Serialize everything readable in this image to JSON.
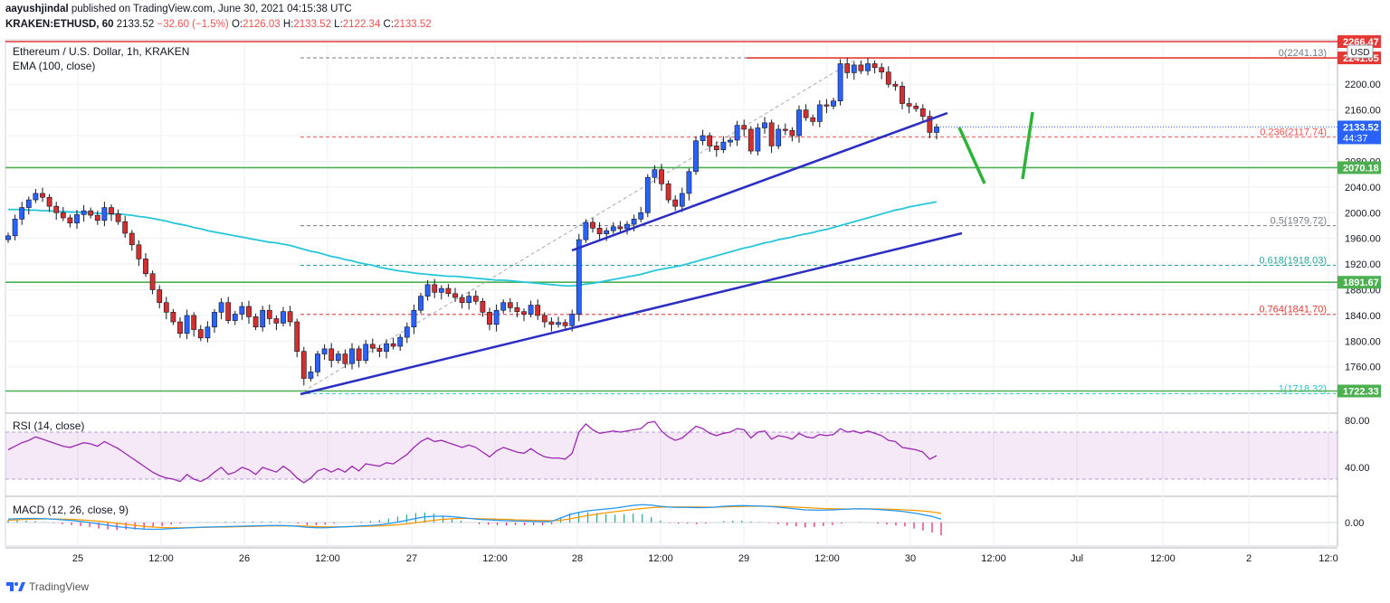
{
  "header": {
    "author": "aayushjindal",
    "published_text": "published on TradingView.com, June 30, 2021 04:15:38 UTC",
    "symbol": "KRAKEN:ETHUSD, 60",
    "last": "2133.52",
    "change": "−32.60 (−1.5%)",
    "o_label": "O:",
    "o_value": "2126.03",
    "h_label": "H:",
    "h_value": "2133.52",
    "l_label": "L:",
    "l_value": "2122.34",
    "c_label": "C:",
    "c_value": "2133.52"
  },
  "footer": {
    "brand": "TradingView"
  },
  "colors": {
    "up": "#2962ff",
    "down": "#d32f2f",
    "ema": "#26c6da",
    "trendline": "#2a2ec2",
    "support": "#4caf50",
    "resistance": "#e53935",
    "rsi": "#9c27b0",
    "macd": "#2196f3",
    "signal": "#ff9800",
    "hist": "#e91e63",
    "projection": "#2eb33a"
  },
  "chart_data": [
    {
      "type": "candlestick",
      "title": "Ethereum / U.S. Dollar, 1h, KRAKEN",
      "indicator_label": "EMA (100, close)",
      "currency": "USD",
      "ylim": [
        1700,
        2270
      ],
      "y_ticks": [
        1760,
        1800,
        1840,
        1880,
        1920,
        1960,
        2000,
        2040,
        2080,
        2120,
        2160,
        2200
      ],
      "x_tick_labels": [
        "25",
        "12:00",
        "26",
        "12:00",
        "27",
        "12:00",
        "28",
        "12:00",
        "29",
        "12:00",
        "30",
        "12:00",
        "Jul",
        "12:00",
        "2",
        "12:0"
      ],
      "price_labels": [
        {
          "value": 2266.47,
          "label": "2266.47",
          "color": "#e53935"
        },
        {
          "value": 2241.05,
          "label": "2241.05",
          "color": "#e53935"
        },
        {
          "value": 2133.52,
          "label": "2133.52",
          "sub": "44:37",
          "color": "#2962ff"
        },
        {
          "value": 2070.18,
          "label": "2070.18",
          "color": "#4caf50"
        },
        {
          "value": 1891.67,
          "label": "1891.67",
          "color": "#4caf50"
        },
        {
          "value": 1722.33,
          "label": "1722.33",
          "color": "#4caf50"
        }
      ],
      "horizontal_lines": [
        {
          "value": 2266.47,
          "style": "resistance"
        },
        {
          "value": 2241.05,
          "style": "resistance"
        },
        {
          "value": 2070.18,
          "style": "support"
        },
        {
          "value": 1891.67,
          "style": "support"
        },
        {
          "value": 1722.33,
          "style": "support"
        }
      ],
      "fibonacci": [
        {
          "level": "0",
          "value": 2241.13,
          "label": "0(2241.13)",
          "color": "#787b86"
        },
        {
          "level": "0.236",
          "value": 2117.74,
          "label": "0.236(2117.74)",
          "color": "#ef5350"
        },
        {
          "level": "0.5",
          "value": 1979.72,
          "label": "0.5(1979.72)",
          "color": "#787b86"
        },
        {
          "level": "0.618",
          "value": 1918.03,
          "label": "0.618(1918.03)",
          "color": "#26a69a"
        },
        {
          "level": "0.764",
          "value": 1841.7,
          "label": "0.764(1841.70)",
          "color": "#e53935"
        },
        {
          "level": "1",
          "value": 1718.32,
          "label": "1(1718.32)",
          "color": "#26c6da"
        }
      ],
      "closes": [
        1964,
        1990,
        2008,
        2020,
        2030,
        2024,
        2010,
        2000,
        1992,
        1984,
        1997,
        2003,
        1996,
        1988,
        2008,
        1998,
        1986,
        1968,
        1950,
        1928,
        1905,
        1880,
        1860,
        1845,
        1830,
        1812,
        1840,
        1818,
        1805,
        1822,
        1845,
        1860,
        1832,
        1842,
        1854,
        1838,
        1822,
        1848,
        1835,
        1828,
        1846,
        1830,
        1784,
        1742,
        1752,
        1780,
        1788,
        1770,
        1780,
        1765,
        1788,
        1770,
        1795,
        1789,
        1784,
        1796,
        1792,
        1806,
        1822,
        1848,
        1870,
        1888,
        1876,
        1882,
        1874,
        1868,
        1860,
        1870,
        1862,
        1845,
        1826,
        1848,
        1860,
        1852,
        1846,
        1842,
        1856,
        1840,
        1830,
        1826,
        1829,
        1824,
        1842,
        1958,
        1985,
        1976,
        1967,
        1972,
        1978,
        1975,
        1982,
        1990,
        2000,
        2055,
        2067,
        2045,
        2020,
        2010,
        2030,
        2064,
        2112,
        2120,
        2104,
        2098,
        2110,
        2113,
        2136,
        2130,
        2096,
        2132,
        2140,
        2104,
        2130,
        2128,
        2120,
        2160,
        2148,
        2142,
        2168,
        2166,
        2174,
        2232,
        2218,
        2230,
        2221,
        2232,
        2226,
        2219,
        2200,
        2197,
        2170,
        2166,
        2162,
        2150,
        2125,
        2133.52
      ],
      "ema": [
        2005,
        2005,
        2005,
        2004,
        2004,
        2003,
        2003,
        2002,
        2002,
        2001,
        2001,
        2000,
        2000,
        1999,
        1999,
        1998,
        1998,
        1997,
        1996,
        1994,
        1993,
        1991,
        1989,
        1987,
        1984,
        1982,
        1980,
        1977,
        1975,
        1972,
        1970,
        1968,
        1966,
        1964,
        1962,
        1960,
        1958,
        1956,
        1954,
        1953,
        1951,
        1949,
        1946,
        1943,
        1940,
        1938,
        1935,
        1932,
        1930,
        1927,
        1925,
        1922,
        1920,
        1918,
        1915,
        1913,
        1911,
        1909,
        1908,
        1906,
        1905,
        1904,
        1903,
        1902,
        1901,
        1901,
        1900,
        1899,
        1898,
        1897,
        1896,
        1895,
        1895,
        1894,
        1893,
        1892,
        1891,
        1890,
        1889,
        1888,
        1887,
        1886,
        1886,
        1887,
        1889,
        1890,
        1892,
        1894,
        1896,
        1898,
        1900,
        1902,
        1904,
        1907,
        1910,
        1912,
        1914,
        1916,
        1918,
        1921,
        1924,
        1927,
        1930,
        1933,
        1936,
        1939,
        1942,
        1945,
        1947,
        1950,
        1953,
        1955,
        1958,
        1960,
        1962,
        1965,
        1967,
        1969,
        1972,
        1974,
        1977,
        1980,
        1983,
        1986,
        1989,
        1992,
        1995,
        1998,
        2001,
        2004,
        2006,
        2009,
        2011,
        2013,
        2015,
        2017
      ]
    },
    {
      "type": "line",
      "title": "RSI (14, close)",
      "ylim": [
        20,
        90
      ],
      "y_ticks": [
        40,
        80
      ],
      "band": [
        30,
        70
      ],
      "values": [
        55,
        58,
        61,
        63,
        66,
        64,
        62,
        60,
        58,
        57,
        59,
        61,
        60,
        58,
        62,
        59,
        56,
        52,
        48,
        44,
        40,
        36,
        33,
        31,
        30,
        28,
        34,
        30,
        28,
        31,
        36,
        40,
        34,
        36,
        40,
        38,
        34,
        40,
        38,
        36,
        41,
        37,
        31,
        27,
        31,
        37,
        39,
        36,
        39,
        36,
        41,
        37,
        43,
        42,
        41,
        44,
        43,
        47,
        51,
        57,
        62,
        65,
        62,
        63,
        61,
        59,
        57,
        59,
        57,
        53,
        49,
        54,
        57,
        55,
        53,
        52,
        56,
        52,
        49,
        48,
        48,
        47,
        52,
        70,
        77,
        72,
        69,
        70,
        71,
        70,
        71,
        72,
        73,
        78,
        79,
        71,
        66,
        63,
        65,
        70,
        75,
        73,
        69,
        67,
        69,
        70,
        73,
        72,
        65,
        70,
        71,
        64,
        67,
        66,
        64,
        69,
        66,
        65,
        68,
        67,
        68,
        73,
        70,
        71,
        69,
        71,
        69,
        67,
        63,
        62,
        57,
        56,
        55,
        53,
        47,
        50
      ]
    },
    {
      "type": "line",
      "title": "MACD (12, 26, close, 9)",
      "ylim": [
        -1,
        1
      ],
      "y_ticks": [
        0
      ],
      "macd": [
        0.15,
        0.17,
        0.18,
        0.18,
        0.17,
        0.15,
        0.12,
        0.09,
        0.05,
        0.0,
        -0.06,
        -0.12,
        -0.18,
        -0.22,
        -0.26,
        -0.29,
        -0.3,
        -0.29,
        -0.27,
        -0.25,
        -0.23,
        -0.21,
        -0.2,
        -0.19,
        -0.18,
        -0.17,
        -0.16,
        -0.15,
        -0.14,
        -0.13,
        -0.13,
        -0.14,
        -0.17,
        -0.21,
        -0.23,
        -0.23,
        -0.21,
        -0.19,
        -0.17,
        -0.15,
        -0.13,
        -0.1,
        -0.05,
        0.02,
        0.1,
        0.18,
        0.25,
        0.28,
        0.28,
        0.26,
        0.22,
        0.18,
        0.14,
        0.12,
        0.1,
        0.08,
        0.07,
        0.06,
        0.05,
        0.04,
        0.05,
        0.2,
        0.35,
        0.45,
        0.52,
        0.56,
        0.6,
        0.64,
        0.7,
        0.76,
        0.79,
        0.77,
        0.72,
        0.68,
        0.67,
        0.67,
        0.66,
        0.66,
        0.68,
        0.72,
        0.74,
        0.75,
        0.74,
        0.73,
        0.71,
        0.68,
        0.64,
        0.6,
        0.56,
        0.55,
        0.55,
        0.56,
        0.58,
        0.6,
        0.61,
        0.6,
        0.58,
        0.55,
        0.52,
        0.48,
        0.42,
        0.35,
        0.27,
        0.15
      ],
      "signal": [
        0.1,
        0.12,
        0.14,
        0.15,
        0.16,
        0.16,
        0.15,
        0.14,
        0.12,
        0.09,
        0.06,
        0.02,
        -0.03,
        -0.08,
        -0.12,
        -0.17,
        -0.2,
        -0.22,
        -0.23,
        -0.23,
        -0.23,
        -0.22,
        -0.21,
        -0.2,
        -0.2,
        -0.19,
        -0.18,
        -0.17,
        -0.16,
        -0.15,
        -0.15,
        -0.15,
        -0.15,
        -0.16,
        -0.18,
        -0.19,
        -0.19,
        -0.19,
        -0.18,
        -0.17,
        -0.16,
        -0.15,
        -0.13,
        -0.1,
        -0.06,
        -0.01,
        0.05,
        0.1,
        0.14,
        0.17,
        0.18,
        0.18,
        0.17,
        0.16,
        0.15,
        0.14,
        0.12,
        0.11,
        0.1,
        0.09,
        0.08,
        0.1,
        0.16,
        0.24,
        0.31,
        0.37,
        0.43,
        0.48,
        0.53,
        0.58,
        0.62,
        0.66,
        0.68,
        0.69,
        0.69,
        0.69,
        0.69,
        0.68,
        0.68,
        0.69,
        0.7,
        0.71,
        0.72,
        0.72,
        0.72,
        0.71,
        0.7,
        0.68,
        0.66,
        0.64,
        0.62,
        0.61,
        0.6,
        0.6,
        0.6,
        0.6,
        0.6,
        0.59,
        0.58,
        0.56,
        0.54,
        0.51,
        0.47,
        0.41
      ]
    }
  ]
}
